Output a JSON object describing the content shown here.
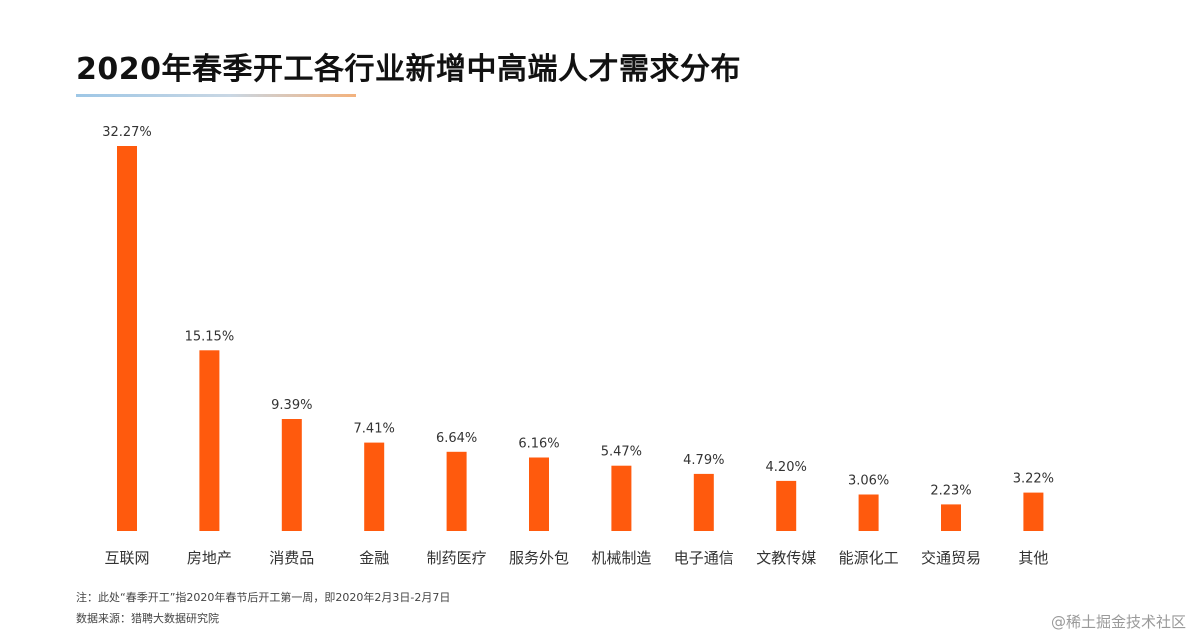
{
  "title": "2020年春季开工各行业新增中高端人才需求分布",
  "notes": {
    "line1": "注：此处“春季开工”指2020年春节后开工第一周，即2020年2月3日-2月7日",
    "line2": "数据来源：猎聘大数据研究院"
  },
  "watermark": "@稀土掘金技术社区",
  "colors": {
    "bar": "#ff5a0d",
    "title": "#111111",
    "label": "#333333"
  },
  "chart_data": {
    "type": "bar",
    "title": "2020年春季开工各行业新增中高端人才需求分布",
    "xlabel": "",
    "ylabel": "",
    "ylim": [
      0,
      35
    ],
    "grid": false,
    "categories": [
      "互联网",
      "房地产",
      "消费品",
      "金融",
      "制药医疗",
      "服务外包",
      "机械制造",
      "电子通信",
      "文教传媒",
      "能源化工",
      "交通贸易",
      "其他"
    ],
    "values": [
      32.27,
      15.15,
      9.39,
      7.41,
      6.64,
      6.16,
      5.47,
      4.79,
      4.2,
      3.06,
      2.23,
      3.22
    ],
    "value_labels": [
      "32.27%",
      "15.15%",
      "9.39%",
      "7.41%",
      "6.64%",
      "6.16%",
      "5.47%",
      "4.79%",
      "4.20%",
      "3.06%",
      "2.23%",
      "3.22%"
    ]
  }
}
